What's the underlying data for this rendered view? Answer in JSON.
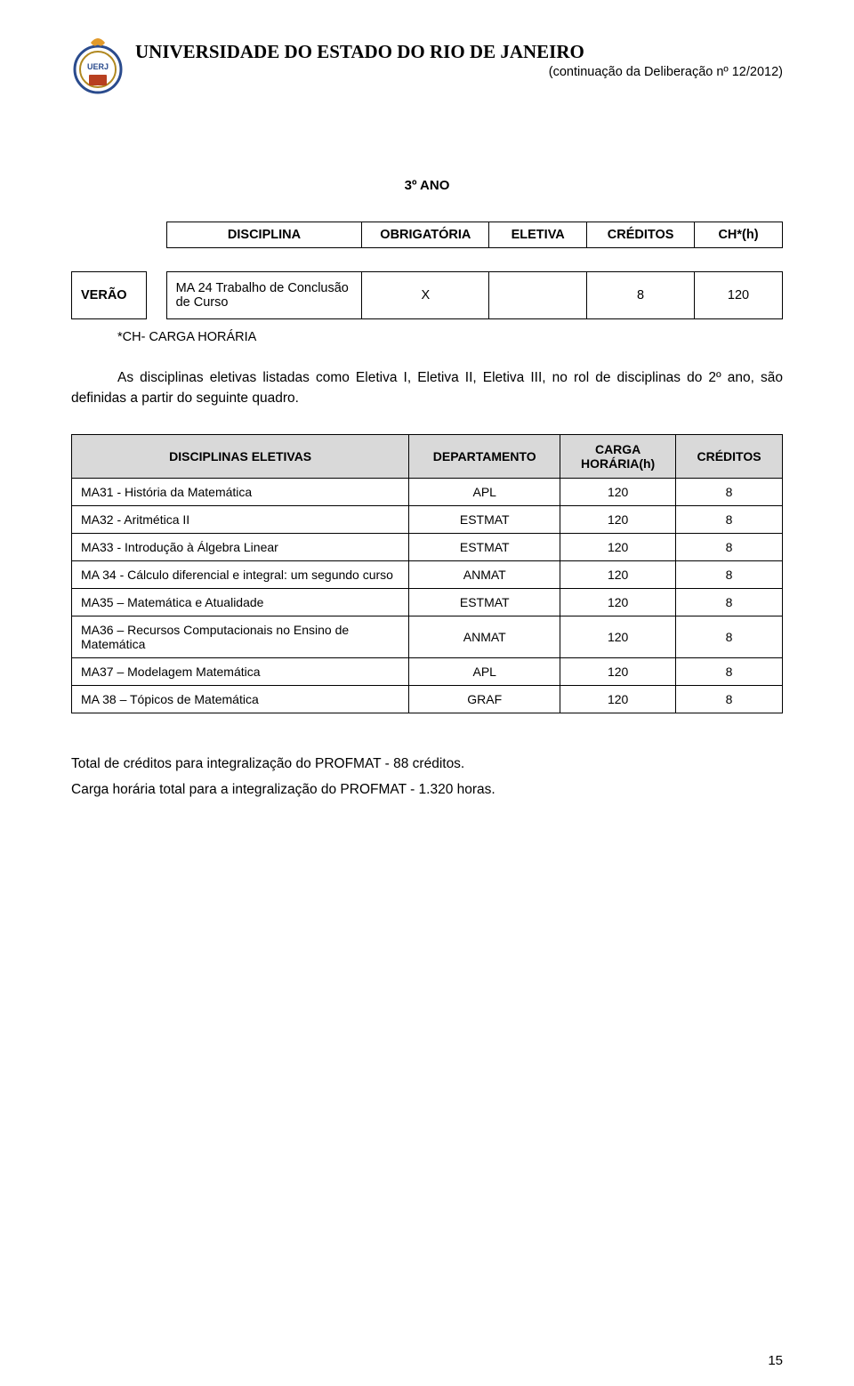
{
  "header": {
    "university": "UNIVERSIDADE DO ESTADO DO RIO DE JANEIRO",
    "continuation": "(continuação da Deliberação nº 12/2012)"
  },
  "section_title": "3º ANO",
  "table1": {
    "headers": {
      "disciplina": "DISCIPLINA",
      "obrigatoria": "OBRIGATÓRIA",
      "eletiva": "ELETIVA",
      "creditos": "CRÉDITOS",
      "ch": "CH*(h)"
    },
    "row_label": "VERÃO",
    "row": {
      "disciplina": "MA 24 Trabalho de Conclusão de Curso",
      "obrigatoria": "X",
      "eletiva": "",
      "creditos": "8",
      "ch": "120"
    }
  },
  "note_ch": "*CH- CARGA HORÁRIA",
  "paragraph": "As disciplinas eletivas listadas como Eletiva I, Eletiva II, Eletiva III, no rol de disciplinas do 2º ano, são definidas a partir do seguinte quadro.",
  "table2": {
    "headers": {
      "disc": "DISCIPLINAS ELETIVAS",
      "dept": "DEPARTAMENTO",
      "carga": "CARGA HORÁRIA(h)",
      "cred": "CRÉDITOS"
    },
    "rows": [
      {
        "name": "MA31 - História da Matemática",
        "dept": "APL",
        "ch": "120",
        "cr": "8"
      },
      {
        "name": "MA32 - Aritmética II",
        "dept": "ESTMAT",
        "ch": "120",
        "cr": "8"
      },
      {
        "name": "MA33 - Introdução à Álgebra Linear",
        "dept": "ESTMAT",
        "ch": "120",
        "cr": "8"
      },
      {
        "name": "MA 34 - Cálculo diferencial e integral: um segundo curso",
        "dept": "ANMAT",
        "ch": "120",
        "cr": "8"
      },
      {
        "name": "MA35 – Matemática e Atualidade",
        "dept": "ESTMAT",
        "ch": "120",
        "cr": "8"
      },
      {
        "name": "MA36 – Recursos Computacionais no Ensino de Matemática",
        "dept": "ANMAT",
        "ch": "120",
        "cr": "8"
      },
      {
        "name": "MA37 – Modelagem Matemática",
        "dept": "APL",
        "ch": "120",
        "cr": "8"
      },
      {
        "name": "MA 38 – Tópicos de Matemática",
        "dept": "GRAF",
        "ch": "120",
        "cr": "8"
      }
    ]
  },
  "footer": {
    "line1": "Total de créditos para integralização do PROFMAT - 88 créditos.",
    "line2": "Carga horária total para a integralização do PROFMAT - 1.320 horas."
  },
  "page_number": "15",
  "style": {
    "col_widths_t1": {
      "label": 76,
      "disc": 200,
      "obr": 130,
      "ele": 100,
      "cred": 110,
      "ch": 90
    },
    "col_widths_t2": {
      "disc": 380,
      "dept": 170,
      "ch": 130,
      "cr": 120
    },
    "colors": {
      "header_bg": "#d9d9d9",
      "border": "#000000",
      "text": "#000000",
      "background": "#ffffff"
    },
    "fonts": {
      "body_pt": 15,
      "table_pt": 14,
      "title_pt": 21
    }
  }
}
